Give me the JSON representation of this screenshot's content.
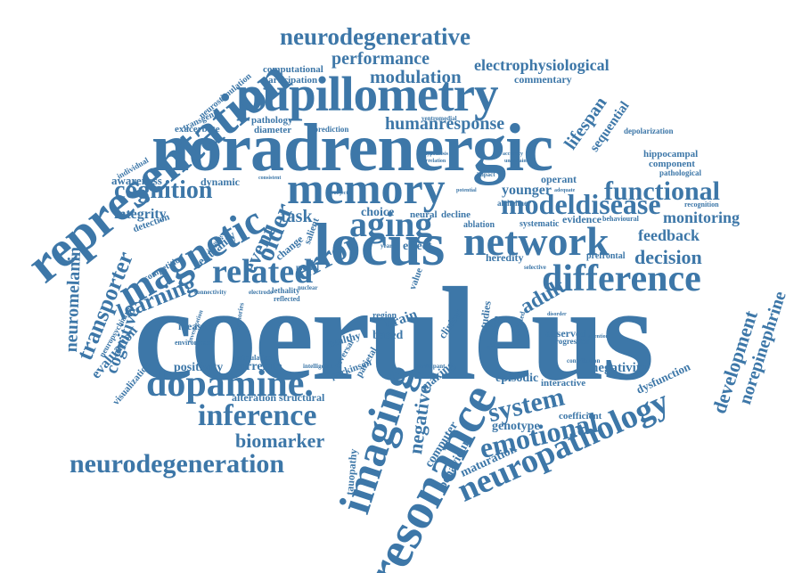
{
  "cloud": {
    "color": "#3d77a8",
    "background": "#ffffff",
    "words": {
      "coeruleus": "coeruleus",
      "noradrenergic": "noradrenergic",
      "pupillometry": "pupillometry",
      "locus": "locus",
      "memory": "memory",
      "representation": "representation",
      "resonance": "resonance",
      "imaging": "imaging",
      "magnetic": "magnetic",
      "network": "network",
      "difference": "difference",
      "dopamine": "dopamine.",
      "aging": "aging",
      "inference": "inference",
      "neurodegeneration": "neurodegeneration",
      "neuropathology": "neuropathology",
      "neurodegenerative": "neurodegenerative",
      "emotional": "emotional",
      "functional": "functional",
      "related": "related",
      "modeldisease": "modeldisease",
      "cognition": "cognition",
      "error": "error",
      "older": "older",
      "learning": "learning",
      "transporter": "transporter",
      "neuromelanin": "neuromelanin",
      "system": "system",
      "biomarker": "biomarker",
      "event": "event",
      "decision": "decision",
      "adult": "adult",
      "performance": "performance",
      "modulation": "modulation",
      "electrophysiological": "electrophysiological",
      "humanresponse": "humanresponse",
      "lifespan": "lifespan",
      "sequential": "sequential",
      "development": "development",
      "norepinephrine": "norepinephrine",
      "task": "task",
      "younger": "younger",
      "monitoring": "monitoring",
      "feedback": "feedback",
      "integrity": "integrity",
      "cognitive": "cognitive",
      "evaluation": "evaluation",
      "awareness": "awareness",
      "dynamic": "dynamic",
      "positivity": "positivity",
      "correlate": "correlate",
      "negativity": "negativity",
      "negative": "negative",
      "episodic": "episodic",
      "genotype": "genotype",
      "coefficient": "coefficient",
      "maturation": "maturation",
      "behaviour": "behaviour",
      "computer": "computer",
      "making": "making",
      "tauopathy": "tauopathy",
      "alteration_structural": "alteration structural",
      "measure": "measure",
      "centrality": "centrality",
      "detection": "detection",
      "visualization": "visualization",
      "neuropsychiatric": "neuropsychiatric",
      "competition": "competition",
      "interactive": "interactive",
      "dysfunction": "dysfunction",
      "observed": "observed",
      "progression": "progression",
      "effect": "effect",
      "heredity": "heredity",
      "choice": "choice",
      "neural": "neural",
      "decline": "decline",
      "brain": "brain",
      "region": "region",
      "based": "based",
      "healthy": "healthy",
      "clinical": "clinical",
      "studies": "studies",
      "function": "function",
      "evidence": "evidence",
      "prefrontal": "prefrontal",
      "operant": "operant",
      "alzheimer": "alzheimer",
      "ablation": "ablation",
      "systematic": "systematic",
      "hippocampal": "hippocampal",
      "component": "component",
      "pathological": "pathological",
      "recognition": "recognition",
      "behavioural": "behavioural",
      "depolarization": "depolarization",
      "computational": "computational",
      "participation": "participation",
      "commentary": "commentary",
      "neurostimulation": "neurostimulation",
      "transgenic": "transgenic",
      "exacerbate": "exacerbate",
      "pathology": "pathology",
      "diameter": "diameter",
      "prediction": "prediction",
      "ventromedial": "ventromedial",
      "individual": "individual",
      "change": "change",
      "salient": "salient",
      "medial": "medial",
      "lethality": "lethality",
      "reflected": "reflected",
      "parietal": "parietal",
      "parkinson": "parkinson",
      "intelligence": "intelligence",
      "stimulation": "stimulation",
      "environment": "environment",
      "connectivity": "connectivity",
      "electrode": "electrode",
      "memories": "memories",
      "reversal": "reversal",
      "value": "value",
      "year": "year",
      "impact": "impact",
      "selective": "selective",
      "predicted": "predicted",
      "contribution": "contribution",
      "participant": "participant",
      "nuclear": "nuclear",
      "influence": "influence",
      "investigation": "investigation",
      "accuracy": "accuracy",
      "uncertain": "uncertain",
      "hypothesis": "hypothesis",
      "subject": "subject",
      "potential": "potential",
      "adequate": "adequate",
      "disorder": "disorder",
      "attention": "attention",
      "correlation": "correlation",
      "consistent": "consistent"
    }
  }
}
